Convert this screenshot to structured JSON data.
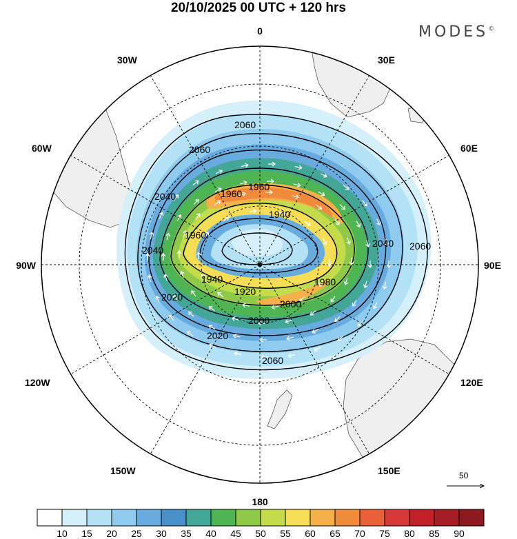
{
  "header": {
    "title": "20/10/2025  00 UTC  + 120 hrs",
    "brand": "MODES",
    "brand_mark": "©"
  },
  "map": {
    "projection": "south polar stereographic",
    "longitude_labels": {
      "n": "0",
      "s": "180",
      "e": "90E",
      "w": "90W",
      "nne": "30E",
      "ene": "60E",
      "ese": "120E",
      "sse": "150E",
      "nnw": "30W",
      "wnw": "60W",
      "wsw": "120W",
      "ssw": "150W"
    },
    "contour_labels": [
      "2060",
      "2060",
      "2040",
      "1960",
      "1960",
      "2040",
      "2060",
      "1940",
      "1920",
      "1980",
      "1960",
      "2020",
      "2000",
      "2020",
      "2060",
      "1940",
      "2000",
      "2040"
    ],
    "colors": {
      "land": "#efefef",
      "coast": "#555555",
      "grid": "#000000"
    }
  },
  "vector_scale": {
    "value": "50"
  },
  "colorbar": {
    "ticks": [
      "10",
      "15",
      "20",
      "25",
      "30",
      "35",
      "40",
      "45",
      "50",
      "55",
      "60",
      "65",
      "70",
      "75",
      "80",
      "85",
      "90"
    ],
    "colors": [
      "#ffffff",
      "#d6f0fb",
      "#b3e1f6",
      "#8ecbee",
      "#68acdf",
      "#4a90c8",
      "#43a697",
      "#4fb454",
      "#8ec94a",
      "#c4dc4c",
      "#f5dd55",
      "#f6b04a",
      "#f08b3b",
      "#e9613a",
      "#d9383a",
      "#c21f2b",
      "#a51e26",
      "#8c1a1f"
    ]
  }
}
